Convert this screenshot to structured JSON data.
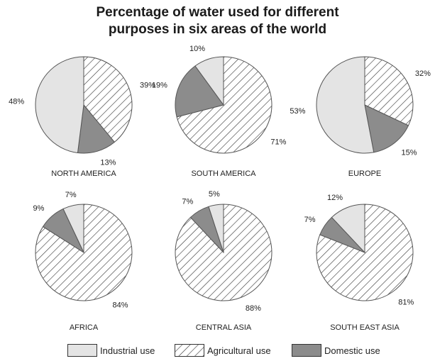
{
  "title": {
    "line1": "Percentage of water used for different",
    "line2": "purposes in six areas of the world"
  },
  "legend": [
    {
      "key": "industrial",
      "label": "Industrial use"
    },
    {
      "key": "agricultural",
      "label": "Agricultural use"
    },
    {
      "key": "domestic",
      "label": "Domestic use"
    }
  ],
  "colors": {
    "industrial": "#e4e4e4",
    "agricultural_hatch": "#333333",
    "domestic": "#8c8c8c",
    "outline": "#555555"
  },
  "chart_data": [
    {
      "type": "pie",
      "title": "NORTH AMERICA",
      "slices": [
        {
          "category": "Agricultural use",
          "value": 39,
          "label": "39%"
        },
        {
          "category": "Domestic use",
          "value": 13,
          "label": "13%"
        },
        {
          "category": "Industrial use",
          "value": 48,
          "label": "48%"
        }
      ]
    },
    {
      "type": "pie",
      "title": "SOUTH AMERICA",
      "slices": [
        {
          "category": "Agricultural use",
          "value": 71,
          "label": "71%"
        },
        {
          "category": "Domestic use",
          "value": 19,
          "label": "19%"
        },
        {
          "category": "Industrial use",
          "value": 10,
          "label": "10%"
        }
      ]
    },
    {
      "type": "pie",
      "title": "EUROPE",
      "slices": [
        {
          "category": "Agricultural use",
          "value": 32,
          "label": "32%"
        },
        {
          "category": "Domestic use",
          "value": 15,
          "label": "15%"
        },
        {
          "category": "Industrial use",
          "value": 53,
          "label": "53%"
        }
      ]
    },
    {
      "type": "pie",
      "title": "AFRICA",
      "slices": [
        {
          "category": "Agricultural use",
          "value": 84,
          "label": "84%"
        },
        {
          "category": "Domestic use",
          "value": 9,
          "label": "9%"
        },
        {
          "category": "Industrial use",
          "value": 7,
          "label": "7%"
        }
      ]
    },
    {
      "type": "pie",
      "title": "CENTRAL ASIA",
      "slices": [
        {
          "category": "Agricultural use",
          "value": 88,
          "label": "88%"
        },
        {
          "category": "Domestic use",
          "value": 7,
          "label": "7%"
        },
        {
          "category": "Industrial use",
          "value": 5,
          "label": "5%"
        }
      ]
    },
    {
      "type": "pie",
      "title": "SOUTH EAST ASIA",
      "slices": [
        {
          "category": "Agricultural use",
          "value": 81,
          "label": "81%"
        },
        {
          "category": "Domestic use",
          "value": 7,
          "label": "7%"
        },
        {
          "category": "Industrial use",
          "value": 12,
          "label": "12%"
        }
      ]
    }
  ]
}
